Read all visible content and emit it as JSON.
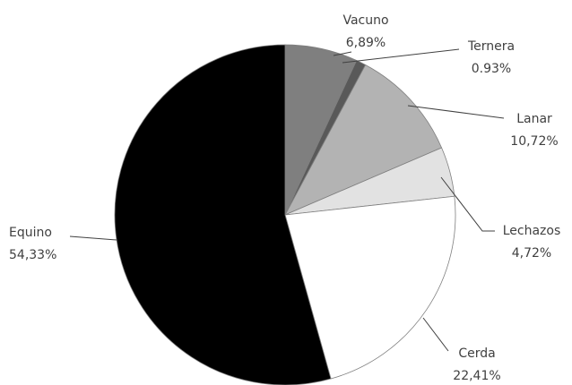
{
  "chart_data": {
    "type": "pie",
    "slices": [
      {
        "label": "Vacuno",
        "value_label": "6,89%",
        "value": 6.89,
        "color": "#7f7f7f"
      },
      {
        "label": "Ternera",
        "value_label": "0.93%",
        "value": 0.93,
        "color": "#595959"
      },
      {
        "label": "Lanar",
        "value_label": "10,72%",
        "value": 10.72,
        "color": "#b3b3b3"
      },
      {
        "label": "Lechazos",
        "value_label": "4,72%",
        "value": 4.72,
        "color": "#e2e2e2"
      },
      {
        "label": "Cerda",
        "value_label": "22,41%",
        "value": 22.41,
        "color": "#ffffff"
      },
      {
        "label": "Equino",
        "value_label": "54,33%",
        "value": 54.33,
        "color": "#000000"
      }
    ],
    "legend": "none"
  }
}
